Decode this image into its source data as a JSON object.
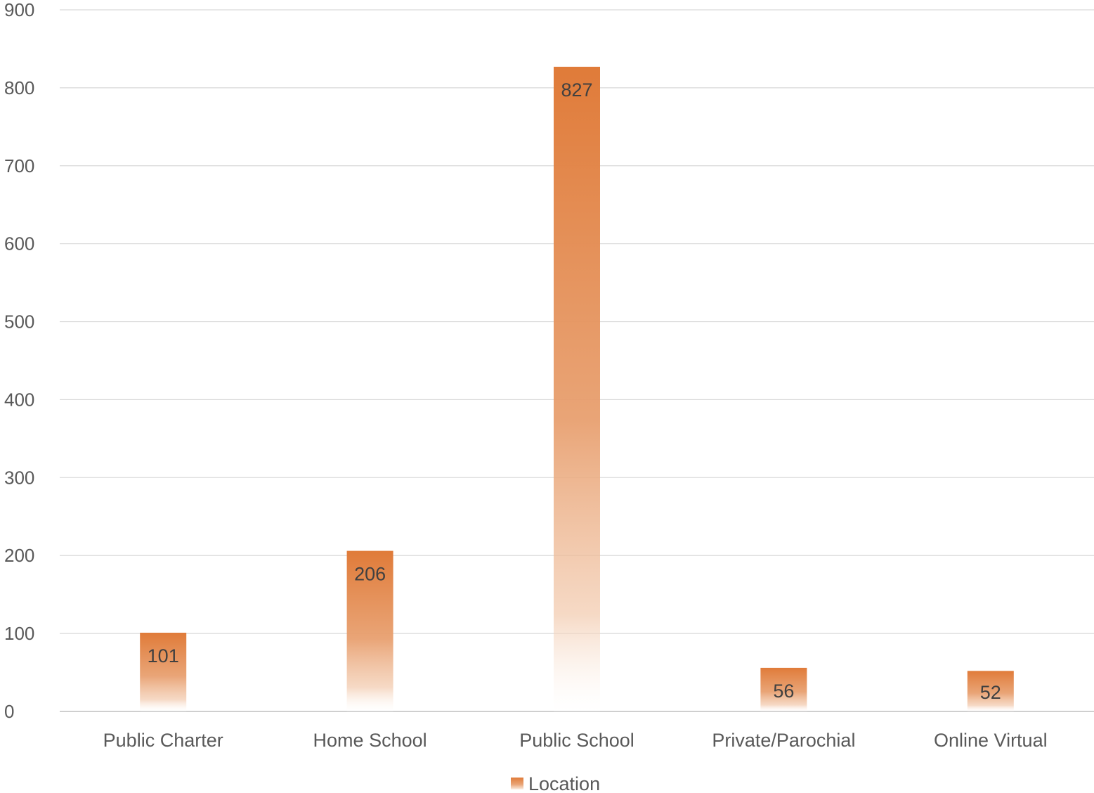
{
  "chart_data": {
    "type": "bar",
    "categories": [
      "Public Charter",
      "Home School",
      "Public School",
      "Private/Parochial",
      "Online Virtual"
    ],
    "series": [
      {
        "name": "Location",
        "values": [
          101,
          206,
          827,
          56,
          52
        ],
        "color": "#E07B39"
      }
    ],
    "data_labels": [
      "101",
      "206",
      "827",
      "56",
      "52"
    ],
    "y_ticks": [
      "0",
      "100",
      "200",
      "300",
      "400",
      "500",
      "600",
      "700",
      "800",
      "900"
    ],
    "ylim": [
      0,
      900
    ],
    "grid": true,
    "legend": {
      "position": "bottom",
      "label": "Location"
    },
    "gridline_color": "#D9D9D9",
    "text_color": "#595959"
  }
}
